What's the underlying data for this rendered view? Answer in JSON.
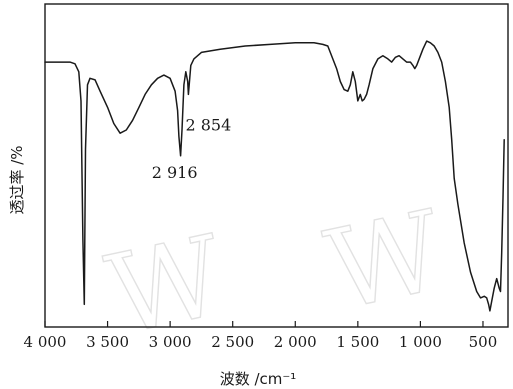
{
  "chart_data": {
    "type": "line",
    "title": "",
    "xlabel": "波数 /cm⁻¹",
    "ylabel": "透过率 /%",
    "xlim": [
      4000,
      300
    ],
    "x_reversed": true,
    "ylim": [
      0,
      100
    ],
    "x_ticks": [
      4000,
      3500,
      3000,
      2500,
      2000,
      1500,
      1000,
      500
    ],
    "x_tick_labels": [
      "4 000",
      "3 500",
      "3 000",
      "2 500",
      "2 000",
      "1 500",
      "1 000",
      "500"
    ],
    "grid": false,
    "legend": "none",
    "series": [
      {
        "x": [
          4000,
          3800,
          3760,
          3730,
          3712,
          3697,
          3686,
          3676,
          3660,
          3640,
          3600,
          3560,
          3500,
          3450,
          3400,
          3350,
          3300,
          3250,
          3200,
          3150,
          3100,
          3050,
          3000,
          2960,
          2940,
          2930,
          2916,
          2905,
          2890,
          2875,
          2860,
          2854,
          2848,
          2835,
          2810,
          2750,
          2600,
          2400,
          2200,
          2000,
          1850,
          1780,
          1740,
          1700,
          1670,
          1640,
          1610,
          1580,
          1560,
          1540,
          1520,
          1500,
          1480,
          1465,
          1450,
          1430,
          1410,
          1380,
          1340,
          1300,
          1260,
          1230,
          1200,
          1170,
          1140,
          1110,
          1080,
          1060,
          1045,
          1030,
          1000,
          980,
          950,
          920,
          890,
          860,
          830,
          800,
          770,
          750,
          730,
          700,
          650,
          600,
          550,
          520,
          490,
          470,
          455,
          445,
          430,
          410,
          390,
          370,
          360,
          350,
          340,
          330
        ],
        "y": [
          82,
          82,
          81.5,
          79,
          70,
          27,
          7,
          55,
          75,
          77,
          76.5,
          73,
          68,
          63,
          60,
          61,
          64,
          68,
          72,
          75,
          77,
          78,
          77,
          73,
          67,
          59,
          53,
          61,
          75,
          79,
          76,
          72,
          75,
          81,
          83,
          85,
          86,
          87,
          87.5,
          88,
          88,
          87.5,
          87,
          83,
          80,
          76,
          73.5,
          73,
          75,
          79,
          76,
          70,
          72,
          70,
          70.5,
          72,
          75,
          80,
          83,
          84,
          83,
          82,
          83.5,
          84,
          83,
          82,
          82,
          81,
          80,
          81,
          84,
          86,
          88.5,
          88,
          87,
          85,
          82,
          76,
          68,
          58,
          46,
          38,
          26,
          17,
          11,
          9,
          9.5,
          9,
          7,
          5,
          8,
          12,
          15,
          12,
          11,
          23,
          40,
          58
        ]
      }
    ],
    "annotations": [
      {
        "text": "2 854",
        "x": 2854
      },
      {
        "text": "2 916",
        "x": 2916
      }
    ]
  }
}
